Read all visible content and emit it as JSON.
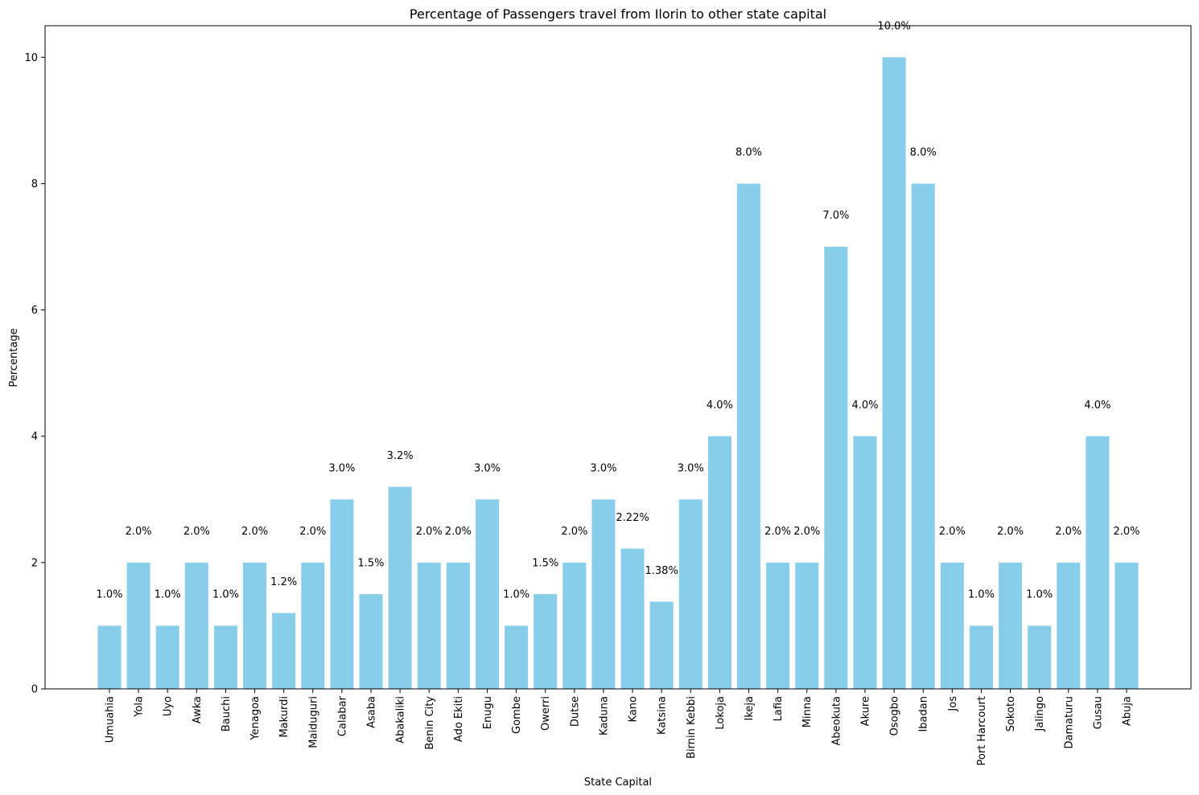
{
  "chart_data": {
    "type": "bar",
    "title": "Percentage of Passengers travel from Ilorin to other state capital",
    "xlabel": "State Capital",
    "ylabel": "Percentage",
    "ylim": [
      0,
      10.5
    ],
    "yticks": [
      0,
      2,
      4,
      6,
      8,
      10
    ],
    "grid": false,
    "bar_color": "#87CEEB",
    "categories": [
      "Umuahia",
      "Yola",
      "Uyo",
      "Awka",
      "Bauchi",
      "Yenagoa",
      "Makurdi",
      "Maiduguri",
      "Calabar",
      "Asaba",
      "Abakaliki",
      "Benin City",
      "Ado Ekiti",
      "Enugu",
      "Gombe",
      "Owerri",
      "Dutse",
      "Kaduna",
      "Kano",
      "Katsina",
      "Birnin Kebbi",
      "Lokoja",
      "Ikeja",
      "Lafia",
      "Minna",
      "Abeokuta",
      "Akure",
      "Osogbo",
      "Ibadan",
      "Jos",
      "Port Harcourt",
      "Sokoto",
      "Jalingo",
      "Damaturu",
      "Gusau",
      "Abuja"
    ],
    "values": [
      1,
      2,
      1,
      2,
      1,
      2,
      1.2,
      2,
      3,
      1.5,
      3.2,
      2,
      2,
      3,
      1,
      1.5,
      2,
      3,
      2.22,
      1.38,
      3,
      4,
      8,
      2,
      2,
      7,
      4,
      10,
      8,
      2,
      1,
      2,
      1,
      2,
      4,
      2
    ],
    "labels": [
      "1.0%",
      "2.0%",
      "1.0%",
      "2.0%",
      "1.0%",
      "2.0%",
      "1.2%",
      "2.0%",
      "3.0%",
      "1.5%",
      "3.2%",
      "2.0%",
      "2.0%",
      "3.0%",
      "1.0%",
      "1.5%",
      "2.0%",
      "3.0%",
      "2.22%",
      "1.38%",
      "3.0%",
      "4.0%",
      "8.0%",
      "2.0%",
      "2.0%",
      "7.0%",
      "4.0%",
      "10.0%",
      "8.0%",
      "2.0%",
      "1.0%",
      "2.0%",
      "1.0%",
      "2.0%",
      "4.0%",
      "2.0%"
    ]
  }
}
